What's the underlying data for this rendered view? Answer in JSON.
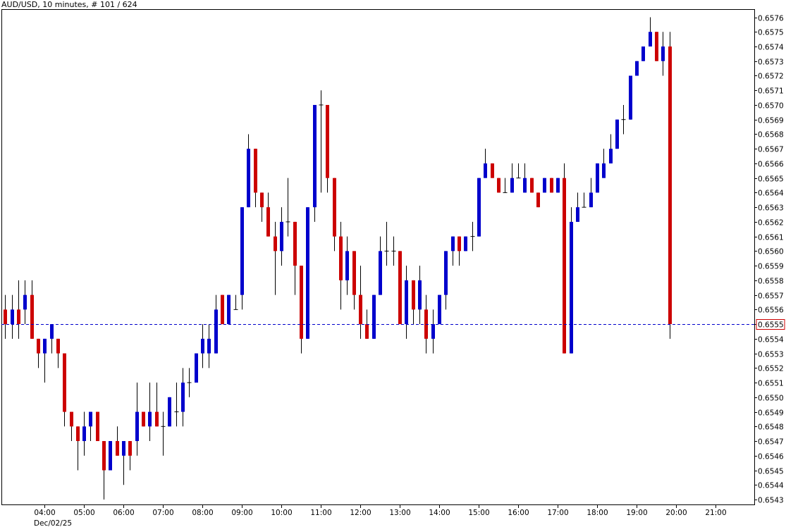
{
  "header": {
    "symbol": "AUD/USD",
    "timeframe": ", 10 minutes",
    "bar_info": ", # 101 / 624"
  },
  "colors": {
    "up": "#0000cc",
    "down": "#cc0000",
    "wick": "#000000",
    "current_line": "#0000cc",
    "current_label_border": "#cc0000",
    "current_label_text": "#cc0000",
    "background": "#ffffff"
  },
  "chart_data": {
    "type": "candlestick",
    "title": "AUD/USD , 10 minutes, # 101 / 624",
    "y_range": [
      0.6543,
      0.6576
    ],
    "y_tick_step": 0.0001,
    "y_axis_position": "right",
    "x_ticks": [
      "04:00",
      "05:00",
      "06:00",
      "07:00",
      "08:00",
      "09:00",
      "10:00",
      "11:00",
      "12:00",
      "13:00",
      "14:00",
      "15:00",
      "16:00",
      "17:00",
      "18:00",
      "19:00",
      "20:00",
      "21:00"
    ],
    "x_date_label": "Dec/02/25",
    "current_price": "0.6555",
    "grid": false,
    "candles": [
      {
        "t": "03:00",
        "o": 0.6556,
        "h": 0.6557,
        "l": 0.6554,
        "c": 0.6555
      },
      {
        "t": "03:10",
        "o": 0.6555,
        "h": 0.6557,
        "l": 0.6554,
        "c": 0.6556
      },
      {
        "t": "03:20",
        "o": 0.6556,
        "h": 0.6558,
        "l": 0.6554,
        "c": 0.6555
      },
      {
        "t": "03:30",
        "o": 0.6556,
        "h": 0.6558,
        "l": 0.6555,
        "c": 0.6557
      },
      {
        "t": "03:40",
        "o": 0.6557,
        "h": 0.6558,
        "l": 0.6554,
        "c": 0.6554
      },
      {
        "t": "03:50",
        "o": 0.6554,
        "h": 0.6554,
        "l": 0.6552,
        "c": 0.6553
      },
      {
        "t": "04:00",
        "o": 0.6553,
        "h": 0.6554,
        "l": 0.6551,
        "c": 0.6554
      },
      {
        "t": "04:10",
        "o": 0.6554,
        "h": 0.6555,
        "l": 0.6553,
        "c": 0.6555
      },
      {
        "t": "04:20",
        "o": 0.6554,
        "h": 0.6554,
        "l": 0.6552,
        "c": 0.6553
      },
      {
        "t": "04:30",
        "o": 0.6553,
        "h": 0.6553,
        "l": 0.6548,
        "c": 0.6549
      },
      {
        "t": "04:40",
        "o": 0.6549,
        "h": 0.6549,
        "l": 0.6547,
        "c": 0.6548
      },
      {
        "t": "04:50",
        "o": 0.6548,
        "h": 0.6548,
        "l": 0.6545,
        "c": 0.6547
      },
      {
        "t": "05:00",
        "o": 0.6547,
        "h": 0.6549,
        "l": 0.6546,
        "c": 0.6548
      },
      {
        "t": "05:10",
        "o": 0.6548,
        "h": 0.6549,
        "l": 0.6547,
        "c": 0.6549
      },
      {
        "t": "05:20",
        "o": 0.6549,
        "h": 0.6549,
        "l": 0.6547,
        "c": 0.6547
      },
      {
        "t": "05:30",
        "o": 0.6547,
        "h": 0.6547,
        "l": 0.6543,
        "c": 0.6545
      },
      {
        "t": "05:40",
        "o": 0.6545,
        "h": 0.6547,
        "l": 0.6545,
        "c": 0.6547
      },
      {
        "t": "05:50",
        "o": 0.6547,
        "h": 0.6548,
        "l": 0.6546,
        "c": 0.6546
      },
      {
        "t": "06:00",
        "o": 0.6546,
        "h": 0.6547,
        "l": 0.6544,
        "c": 0.6547
      },
      {
        "t": "06:10",
        "o": 0.6547,
        "h": 0.6547,
        "l": 0.6545,
        "c": 0.6546
      },
      {
        "t": "06:20",
        "o": 0.6547,
        "h": 0.6551,
        "l": 0.6546,
        "c": 0.6549
      },
      {
        "t": "06:30",
        "o": 0.6549,
        "h": 0.6549,
        "l": 0.6548,
        "c": 0.6548
      },
      {
        "t": "06:40",
        "o": 0.6548,
        "h": 0.6551,
        "l": 0.6547,
        "c": 0.6549
      },
      {
        "t": "06:50",
        "o": 0.6549,
        "h": 0.6551,
        "l": 0.6548,
        "c": 0.6548
      },
      {
        "t": "07:00",
        "o": 0.6548,
        "h": 0.6549,
        "l": 0.6546,
        "c": 0.6548
      },
      {
        "t": "07:10",
        "o": 0.6548,
        "h": 0.655,
        "l": 0.6548,
        "c": 0.655
      },
      {
        "t": "07:20",
        "o": 0.6549,
        "h": 0.6551,
        "l": 0.6548,
        "c": 0.6549
      },
      {
        "t": "07:30",
        "o": 0.6549,
        "h": 0.6552,
        "l": 0.6548,
        "c": 0.6551
      },
      {
        "t": "07:40",
        "o": 0.6551,
        "h": 0.6552,
        "l": 0.655,
        "c": 0.6551
      },
      {
        "t": "07:50",
        "o": 0.6551,
        "h": 0.6553,
        "l": 0.6551,
        "c": 0.6553
      },
      {
        "t": "08:00",
        "o": 0.6553,
        "h": 0.6555,
        "l": 0.6552,
        "c": 0.6554
      },
      {
        "t": "08:10",
        "o": 0.6553,
        "h": 0.6555,
        "l": 0.6552,
        "c": 0.6554
      },
      {
        "t": "08:20",
        "o": 0.6553,
        "h": 0.6557,
        "l": 0.6553,
        "c": 0.6556
      },
      {
        "t": "08:30",
        "o": 0.6557,
        "h": 0.6557,
        "l": 0.6555,
        "c": 0.6555
      },
      {
        "t": "08:40",
        "o": 0.6555,
        "h": 0.6557,
        "l": 0.6555,
        "c": 0.6557
      },
      {
        "t": "08:50",
        "o": 0.6556,
        "h": 0.6557,
        "l": 0.6556,
        "c": 0.6556
      },
      {
        "t": "09:00",
        "o": 0.6557,
        "h": 0.6563,
        "l": 0.6556,
        "c": 0.6563
      },
      {
        "t": "09:10",
        "o": 0.6563,
        "h": 0.6568,
        "l": 0.6563,
        "c": 0.6567
      },
      {
        "t": "09:20",
        "o": 0.6567,
        "h": 0.6567,
        "l": 0.6563,
        "c": 0.6564
      },
      {
        "t": "09:30",
        "o": 0.6564,
        "h": 0.6564,
        "l": 0.6562,
        "c": 0.6563
      },
      {
        "t": "09:40",
        "o": 0.6563,
        "h": 0.6564,
        "l": 0.6561,
        "c": 0.6561
      },
      {
        "t": "09:50",
        "o": 0.6561,
        "h": 0.6562,
        "l": 0.6557,
        "c": 0.656
      },
      {
        "t": "10:00",
        "o": 0.656,
        "h": 0.6563,
        "l": 0.6559,
        "c": 0.6562
      },
      {
        "t": "10:10",
        "o": 0.6562,
        "h": 0.6565,
        "l": 0.6561,
        "c": 0.6562
      },
      {
        "t": "10:20",
        "o": 0.6562,
        "h": 0.6562,
        "l": 0.6557,
        "c": 0.6559
      },
      {
        "t": "10:30",
        "o": 0.6559,
        "h": 0.6559,
        "l": 0.6553,
        "c": 0.6554
      },
      {
        "t": "10:40",
        "o": 0.6554,
        "h": 0.6563,
        "l": 0.6554,
        "c": 0.6563
      },
      {
        "t": "10:50",
        "o": 0.6563,
        "h": 0.657,
        "l": 0.6562,
        "c": 0.657
      },
      {
        "t": "11:00",
        "o": 0.657,
        "h": 0.6571,
        "l": 0.6564,
        "c": 0.657
      },
      {
        "t": "11:10",
        "o": 0.657,
        "h": 0.657,
        "l": 0.6564,
        "c": 0.6565
      },
      {
        "t": "11:20",
        "o": 0.6565,
        "h": 0.6565,
        "l": 0.656,
        "c": 0.6561
      },
      {
        "t": "11:30",
        "o": 0.6561,
        "h": 0.6562,
        "l": 0.6556,
        "c": 0.6558
      },
      {
        "t": "11:40",
        "o": 0.6558,
        "h": 0.6561,
        "l": 0.6557,
        "c": 0.656
      },
      {
        "t": "11:50",
        "o": 0.656,
        "h": 0.656,
        "l": 0.6556,
        "c": 0.6557
      },
      {
        "t": "12:00",
        "o": 0.6557,
        "h": 0.6559,
        "l": 0.6554,
        "c": 0.6555
      },
      {
        "t": "12:10",
        "o": 0.6555,
        "h": 0.6556,
        "l": 0.6554,
        "c": 0.6554
      },
      {
        "t": "12:20",
        "o": 0.6554,
        "h": 0.6557,
        "l": 0.6554,
        "c": 0.6557
      },
      {
        "t": "12:30",
        "o": 0.6557,
        "h": 0.6561,
        "l": 0.6557,
        "c": 0.656
      },
      {
        "t": "12:40",
        "o": 0.656,
        "h": 0.6562,
        "l": 0.6559,
        "c": 0.656
      },
      {
        "t": "12:50",
        "o": 0.656,
        "h": 0.6561,
        "l": 0.6559,
        "c": 0.656
      },
      {
        "t": "13:00",
        "o": 0.656,
        "h": 0.656,
        "l": 0.6555,
        "c": 0.6555
      },
      {
        "t": "13:10",
        "o": 0.6555,
        "h": 0.6559,
        "l": 0.6554,
        "c": 0.6558
      },
      {
        "t": "13:20",
        "o": 0.6558,
        "h": 0.6558,
        "l": 0.6555,
        "c": 0.6556
      },
      {
        "t": "13:30",
        "o": 0.6556,
        "h": 0.6559,
        "l": 0.6555,
        "c": 0.6558
      },
      {
        "t": "13:40",
        "o": 0.6556,
        "h": 0.6557,
        "l": 0.6553,
        "c": 0.6554
      },
      {
        "t": "13:50",
        "o": 0.6554,
        "h": 0.6556,
        "l": 0.6553,
        "c": 0.6555
      },
      {
        "t": "14:00",
        "o": 0.6555,
        "h": 0.6557,
        "l": 0.6555,
        "c": 0.6557
      },
      {
        "t": "14:10",
        "o": 0.6557,
        "h": 0.656,
        "l": 0.6556,
        "c": 0.656
      },
      {
        "t": "14:20",
        "o": 0.656,
        "h": 0.6561,
        "l": 0.6559,
        "c": 0.6561
      },
      {
        "t": "14:30",
        "o": 0.6561,
        "h": 0.6561,
        "l": 0.6559,
        "c": 0.656
      },
      {
        "t": "14:40",
        "o": 0.656,
        "h": 0.6561,
        "l": 0.656,
        "c": 0.6561
      },
      {
        "t": "14:50",
        "o": 0.6561,
        "h": 0.6562,
        "l": 0.656,
        "c": 0.6561
      },
      {
        "t": "15:00",
        "o": 0.6561,
        "h": 0.6565,
        "l": 0.6561,
        "c": 0.6565
      },
      {
        "t": "15:10",
        "o": 0.6565,
        "h": 0.6567,
        "l": 0.6565,
        "c": 0.6566
      },
      {
        "t": "15:20",
        "o": 0.6566,
        "h": 0.6566,
        "l": 0.6565,
        "c": 0.6565
      },
      {
        "t": "15:30",
        "o": 0.6565,
        "h": 0.6565,
        "l": 0.6564,
        "c": 0.6564
      },
      {
        "t": "15:40",
        "o": 0.6564,
        "h": 0.6565,
        "l": 0.6564,
        "c": 0.6564
      },
      {
        "t": "15:50",
        "o": 0.6564,
        "h": 0.6566,
        "l": 0.6564,
        "c": 0.6565
      },
      {
        "t": "16:00",
        "o": 0.6565,
        "h": 0.6566,
        "l": 0.6565,
        "c": 0.6565
      },
      {
        "t": "16:10",
        "o": 0.6564,
        "h": 0.6566,
        "l": 0.6564,
        "c": 0.6565
      },
      {
        "t": "16:20",
        "o": 0.6565,
        "h": 0.6565,
        "l": 0.6564,
        "c": 0.6564
      },
      {
        "t": "16:30",
        "o": 0.6564,
        "h": 0.6564,
        "l": 0.6563,
        "c": 0.6563
      },
      {
        "t": "16:40",
        "o": 0.6564,
        "h": 0.6565,
        "l": 0.6564,
        "c": 0.6565
      },
      {
        "t": "16:50",
        "o": 0.6565,
        "h": 0.6565,
        "l": 0.6564,
        "c": 0.6564
      },
      {
        "t": "17:00",
        "o": 0.6564,
        "h": 0.6565,
        "l": 0.6564,
        "c": 0.6565
      },
      {
        "t": "17:10",
        "o": 0.6565,
        "h": 0.6566,
        "l": 0.6553,
        "c": 0.6553
      },
      {
        "t": "17:20",
        "o": 0.6553,
        "h": 0.6563,
        "l": 0.6553,
        "c": 0.6562
      },
      {
        "t": "17:30",
        "o": 0.6562,
        "h": 0.6564,
        "l": 0.6562,
        "c": 0.6563
      },
      {
        "t": "17:40",
        "o": 0.6563,
        "h": 0.6564,
        "l": 0.6563,
        "c": 0.6563
      },
      {
        "t": "17:50",
        "o": 0.6563,
        "h": 0.6565,
        "l": 0.6563,
        "c": 0.6564
      },
      {
        "t": "18:00",
        "o": 0.6564,
        "h": 0.6566,
        "l": 0.6564,
        "c": 0.6566
      },
      {
        "t": "18:10",
        "o": 0.6565,
        "h": 0.6567,
        "l": 0.6565,
        "c": 0.6566
      },
      {
        "t": "18:20",
        "o": 0.6566,
        "h": 0.6568,
        "l": 0.6566,
        "c": 0.6567
      },
      {
        "t": "18:30",
        "o": 0.6567,
        "h": 0.6569,
        "l": 0.6567,
        "c": 0.6569
      },
      {
        "t": "18:40",
        "o": 0.6569,
        "h": 0.657,
        "l": 0.6568,
        "c": 0.6569
      },
      {
        "t": "18:50",
        "o": 0.6569,
        "h": 0.6572,
        "l": 0.6569,
        "c": 0.6572
      },
      {
        "t": "19:00",
        "o": 0.6572,
        "h": 0.6573,
        "l": 0.6572,
        "c": 0.6573
      },
      {
        "t": "19:10",
        "o": 0.6573,
        "h": 0.6574,
        "l": 0.6573,
        "c": 0.6574
      },
      {
        "t": "19:20",
        "o": 0.6574,
        "h": 0.6576,
        "l": 0.6574,
        "c": 0.6575
      },
      {
        "t": "19:30",
        "o": 0.6575,
        "h": 0.6575,
        "l": 0.6573,
        "c": 0.6573
      },
      {
        "t": "19:40",
        "o": 0.6573,
        "h": 0.6575,
        "l": 0.6572,
        "c": 0.6574
      },
      {
        "t": "19:50",
        "o": 0.6574,
        "h": 0.6575,
        "l": 0.6554,
        "c": 0.6555
      }
    ]
  }
}
